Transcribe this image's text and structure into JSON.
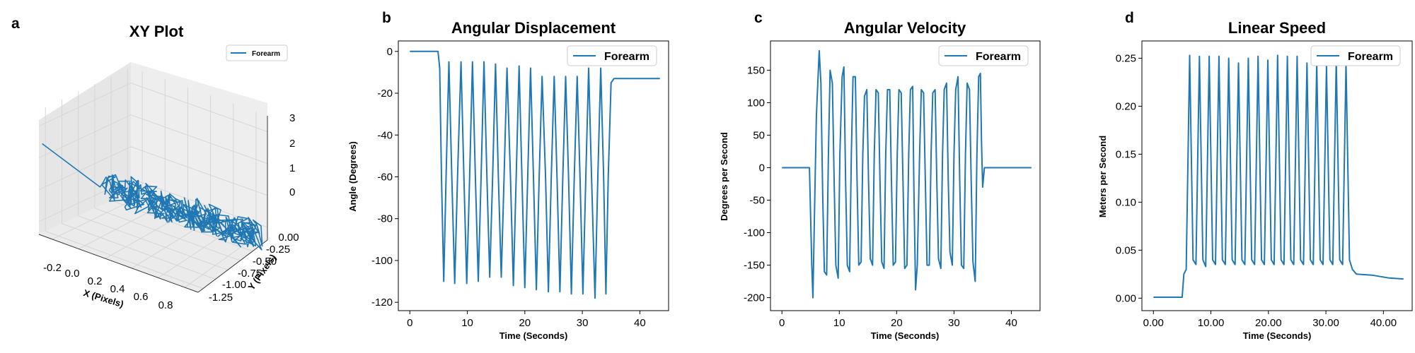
{
  "figure": {
    "panels": [
      "a",
      "b",
      "c",
      "d"
    ]
  },
  "chart_data": [
    {
      "letter": "a",
      "type": "line",
      "projection": "3d",
      "title": "XY Plot",
      "xlabel": "X (Pixels)",
      "ylabel": "Y (Pixels)",
      "zlabel": "",
      "xticks": [
        "-0.2",
        "0.0",
        "0.2",
        "0.4",
        "0.6",
        "0.8"
      ],
      "yticks": [
        "0.00",
        "-0.25",
        "-0.50",
        "-0.75",
        "-1.00",
        "-1.25"
      ],
      "zticks": [
        "0",
        "1",
        "2",
        "3"
      ],
      "xlim": [
        -0.3,
        0.9
      ],
      "ylim": [
        -1.35,
        0.05
      ],
      "zlim": [
        -0.4,
        3.5
      ],
      "grid": true,
      "legend": "upper-right",
      "series": [
        {
          "name": "Forearm",
          "color": "#1f77b4",
          "start": {
            "x": -0.3,
            "y": -1.3,
            "z": 2.4
          },
          "cluster_from": {
            "x": 0.0,
            "y": -0.9,
            "z": 1.1
          },
          "cluster_to": {
            "x": 0.85,
            "y": -0.05,
            "z": -0.2
          }
        }
      ]
    },
    {
      "letter": "b",
      "type": "line",
      "title": "Angular Displacement",
      "xlabel": "Time (Seconds)",
      "ylabel": "Angle (Degrees)",
      "xlim": [
        -2,
        45
      ],
      "ylim": [
        -124,
        5
      ],
      "xticks": [
        0,
        10,
        20,
        30,
        40
      ],
      "yticks": [
        0,
        -20,
        -40,
        -60,
        -80,
        -100,
        -120
      ],
      "tick_format": "int",
      "legend": "upper-right",
      "series": [
        {
          "name": "Forearm",
          "color": "#1f77b4",
          "points": [
            [
              0,
              0
            ],
            [
              4.9,
              0
            ],
            [
              5.2,
              -8
            ],
            [
              5.5,
              -60
            ],
            [
              5.9,
              -110
            ],
            [
              6.3,
              -60
            ],
            [
              6.8,
              -5
            ],
            [
              7.3,
              -60
            ],
            [
              7.8,
              -111
            ],
            [
              8.3,
              -60
            ],
            [
              8.9,
              -5
            ],
            [
              9.4,
              -60
            ],
            [
              9.9,
              -111
            ],
            [
              10.4,
              -60
            ],
            [
              10.9,
              -5
            ],
            [
              11.4,
              -60
            ],
            [
              11.9,
              -110
            ],
            [
              12.4,
              -60
            ],
            [
              12.9,
              -5
            ],
            [
              13.4,
              -60
            ],
            [
              13.9,
              -108
            ],
            [
              14.4,
              -60
            ],
            [
              14.9,
              -6
            ],
            [
              15.4,
              -60
            ],
            [
              15.9,
              -108
            ],
            [
              16.4,
              -60
            ],
            [
              16.9,
              -8
            ],
            [
              17.5,
              -60
            ],
            [
              18.0,
              -112
            ],
            [
              18.5,
              -60
            ],
            [
              19.0,
              -7
            ],
            [
              19.5,
              -60
            ],
            [
              20.0,
              -113
            ],
            [
              20.5,
              -60
            ],
            [
              21.0,
              -8
            ],
            [
              21.5,
              -60
            ],
            [
              22.0,
              -114
            ],
            [
              22.5,
              -60
            ],
            [
              23.0,
              -12
            ],
            [
              23.6,
              -60
            ],
            [
              24.1,
              -115
            ],
            [
              24.6,
              -60
            ],
            [
              25.1,
              -12
            ],
            [
              25.6,
              -60
            ],
            [
              26.1,
              -115
            ],
            [
              26.6,
              -60
            ],
            [
              27.1,
              -12
            ],
            [
              27.6,
              -60
            ],
            [
              28.1,
              -116
            ],
            [
              28.6,
              -60
            ],
            [
              29.1,
              -12
            ],
            [
              29.6,
              -60
            ],
            [
              30.1,
              -116
            ],
            [
              30.6,
              -60
            ],
            [
              31.1,
              -8
            ],
            [
              31.6,
              -60
            ],
            [
              32.2,
              -118
            ],
            [
              32.7,
              -60
            ],
            [
              33.2,
              -8
            ],
            [
              33.7,
              -60
            ],
            [
              34.1,
              -116
            ],
            [
              34.5,
              -60
            ],
            [
              35.0,
              -15
            ],
            [
              35.5,
              -13
            ],
            [
              43.5,
              -13
            ]
          ]
        }
      ]
    },
    {
      "letter": "c",
      "type": "line",
      "title": "Angular Velocity",
      "xlabel": "Time (Seconds)",
      "ylabel": "Degrees per Second",
      "xlim": [
        -2,
        45
      ],
      "ylim": [
        -220,
        195
      ],
      "xticks": [
        0,
        10,
        20,
        30,
        40
      ],
      "yticks": [
        150,
        100,
        50,
        0,
        -50,
        -100,
        -150,
        -200
      ],
      "tick_format": "int",
      "legend": "upper-right",
      "series": [
        {
          "name": "Forearm",
          "color": "#1f77b4",
          "points": [
            [
              0,
              0
            ],
            [
              4.8,
              0
            ],
            [
              5.2,
              -150
            ],
            [
              5.4,
              -200
            ],
            [
              5.7,
              -60
            ],
            [
              6.0,
              80
            ],
            [
              6.3,
              140
            ],
            [
              6.5,
              180
            ],
            [
              6.8,
              130
            ],
            [
              7.1,
              -40
            ],
            [
              7.4,
              -160
            ],
            [
              7.8,
              -165
            ],
            [
              8.1,
              20
            ],
            [
              8.4,
              150
            ],
            [
              8.8,
              130
            ],
            [
              9.1,
              -20
            ],
            [
              9.4,
              -150
            ],
            [
              9.8,
              -170
            ],
            [
              10.1,
              20
            ],
            [
              10.5,
              140
            ],
            [
              10.8,
              155
            ],
            [
              11.1,
              -20
            ],
            [
              11.4,
              -150
            ],
            [
              11.8,
              -160
            ],
            [
              12.1,
              20
            ],
            [
              12.4,
              140
            ],
            [
              12.8,
              140
            ],
            [
              13.1,
              -20
            ],
            [
              13.4,
              -150
            ],
            [
              13.8,
              -145
            ],
            [
              14.1,
              20
            ],
            [
              14.4,
              110
            ],
            [
              14.8,
              120
            ],
            [
              15.1,
              -20
            ],
            [
              15.4,
              -140
            ],
            [
              15.8,
              -150
            ],
            [
              16.1,
              20
            ],
            [
              16.4,
              120
            ],
            [
              16.8,
              115
            ],
            [
              17.1,
              -20
            ],
            [
              17.4,
              -145
            ],
            [
              17.8,
              -155
            ],
            [
              18.1,
              20
            ],
            [
              18.4,
              120
            ],
            [
              18.8,
              120
            ],
            [
              19.1,
              -20
            ],
            [
              19.4,
              -150
            ],
            [
              19.8,
              -145
            ],
            [
              20.1,
              20
            ],
            [
              20.4,
              120
            ],
            [
              20.8,
              115
            ],
            [
              21.1,
              -20
            ],
            [
              21.4,
              -155
            ],
            [
              21.8,
              -150
            ],
            [
              22.1,
              20
            ],
            [
              22.4,
              120
            ],
            [
              22.8,
              125
            ],
            [
              23.0,
              -30
            ],
            [
              23.3,
              -188
            ],
            [
              23.6,
              -150
            ],
            [
              24.0,
              20
            ],
            [
              24.3,
              120
            ],
            [
              24.7,
              115
            ],
            [
              25.0,
              -20
            ],
            [
              25.3,
              -150
            ],
            [
              25.7,
              -150
            ],
            [
              26.0,
              20
            ],
            [
              26.3,
              115
            ],
            [
              26.7,
              120
            ],
            [
              27.0,
              -20
            ],
            [
              27.3,
              -140
            ],
            [
              27.7,
              -155
            ],
            [
              28.0,
              20
            ],
            [
              28.3,
              120
            ],
            [
              28.7,
              130
            ],
            [
              29.0,
              -20
            ],
            [
              29.3,
              -130
            ],
            [
              29.7,
              -150
            ],
            [
              30.0,
              20
            ],
            [
              30.3,
              120
            ],
            [
              30.7,
              140
            ],
            [
              31.0,
              -20
            ],
            [
              31.3,
              -150
            ],
            [
              31.7,
              -155
            ],
            [
              32.0,
              20
            ],
            [
              32.3,
              130
            ],
            [
              32.7,
              120
            ],
            [
              33.0,
              -20
            ],
            [
              33.3,
              -145
            ],
            [
              33.7,
              -175
            ],
            [
              34.0,
              20
            ],
            [
              34.3,
              140
            ],
            [
              34.6,
              145
            ],
            [
              34.8,
              40
            ],
            [
              35.0,
              -30
            ],
            [
              35.3,
              0
            ],
            [
              43.5,
              0
            ]
          ]
        }
      ]
    },
    {
      "letter": "d",
      "type": "line",
      "title": "Linear Speed",
      "xlabel": "Time (Seconds)",
      "ylabel": "Meters per Second",
      "xlim": [
        -2,
        45
      ],
      "ylim": [
        -0.013,
        0.268
      ],
      "xticks": [
        0,
        10,
        20,
        30,
        40
      ],
      "yticks": [
        0.0,
        0.05,
        0.1,
        0.15,
        0.2,
        0.25
      ],
      "tick_format": "2dp",
      "legend": "upper-right",
      "series": [
        {
          "name": "Forearm",
          "color": "#1f77b4",
          "points": [
            [
              0,
              0.001
            ],
            [
              5.0,
              0.001
            ],
            [
              5.3,
              0.025
            ],
            [
              5.7,
              0.03
            ],
            [
              6.3,
              0.253
            ],
            [
              6.9,
              0.04
            ],
            [
              7.4,
              0.035
            ],
            [
              8.0,
              0.252
            ],
            [
              8.6,
              0.04
            ],
            [
              9.1,
              0.033
            ],
            [
              9.7,
              0.252
            ],
            [
              10.3,
              0.04
            ],
            [
              10.8,
              0.035
            ],
            [
              11.4,
              0.252
            ],
            [
              12.0,
              0.04
            ],
            [
              12.5,
              0.035
            ],
            [
              13.1,
              0.25
            ],
            [
              13.7,
              0.04
            ],
            [
              14.2,
              0.035
            ],
            [
              14.8,
              0.245
            ],
            [
              15.4,
              0.04
            ],
            [
              15.9,
              0.035
            ],
            [
              16.5,
              0.25
            ],
            [
              17.1,
              0.04
            ],
            [
              17.6,
              0.035
            ],
            [
              18.2,
              0.252
            ],
            [
              18.8,
              0.04
            ],
            [
              19.3,
              0.035
            ],
            [
              19.9,
              0.248
            ],
            [
              20.5,
              0.04
            ],
            [
              21.0,
              0.035
            ],
            [
              21.6,
              0.253
            ],
            [
              22.2,
              0.04
            ],
            [
              22.7,
              0.035
            ],
            [
              23.3,
              0.252
            ],
            [
              23.9,
              0.04
            ],
            [
              24.4,
              0.035
            ],
            [
              25.0,
              0.252
            ],
            [
              25.6,
              0.04
            ],
            [
              26.1,
              0.035
            ],
            [
              26.7,
              0.245
            ],
            [
              27.3,
              0.04
            ],
            [
              27.8,
              0.035
            ],
            [
              28.4,
              0.245
            ],
            [
              29.0,
              0.04
            ],
            [
              29.5,
              0.035
            ],
            [
              30.1,
              0.242
            ],
            [
              30.7,
              0.04
            ],
            [
              31.2,
              0.035
            ],
            [
              31.8,
              0.248
            ],
            [
              32.4,
              0.04
            ],
            [
              32.9,
              0.035
            ],
            [
              33.5,
              0.245
            ],
            [
              34.1,
              0.04
            ],
            [
              34.6,
              0.03
            ],
            [
              35.3,
              0.025
            ],
            [
              38,
              0.024
            ],
            [
              41,
              0.021
            ],
            [
              43.5,
              0.02
            ]
          ]
        }
      ]
    }
  ]
}
